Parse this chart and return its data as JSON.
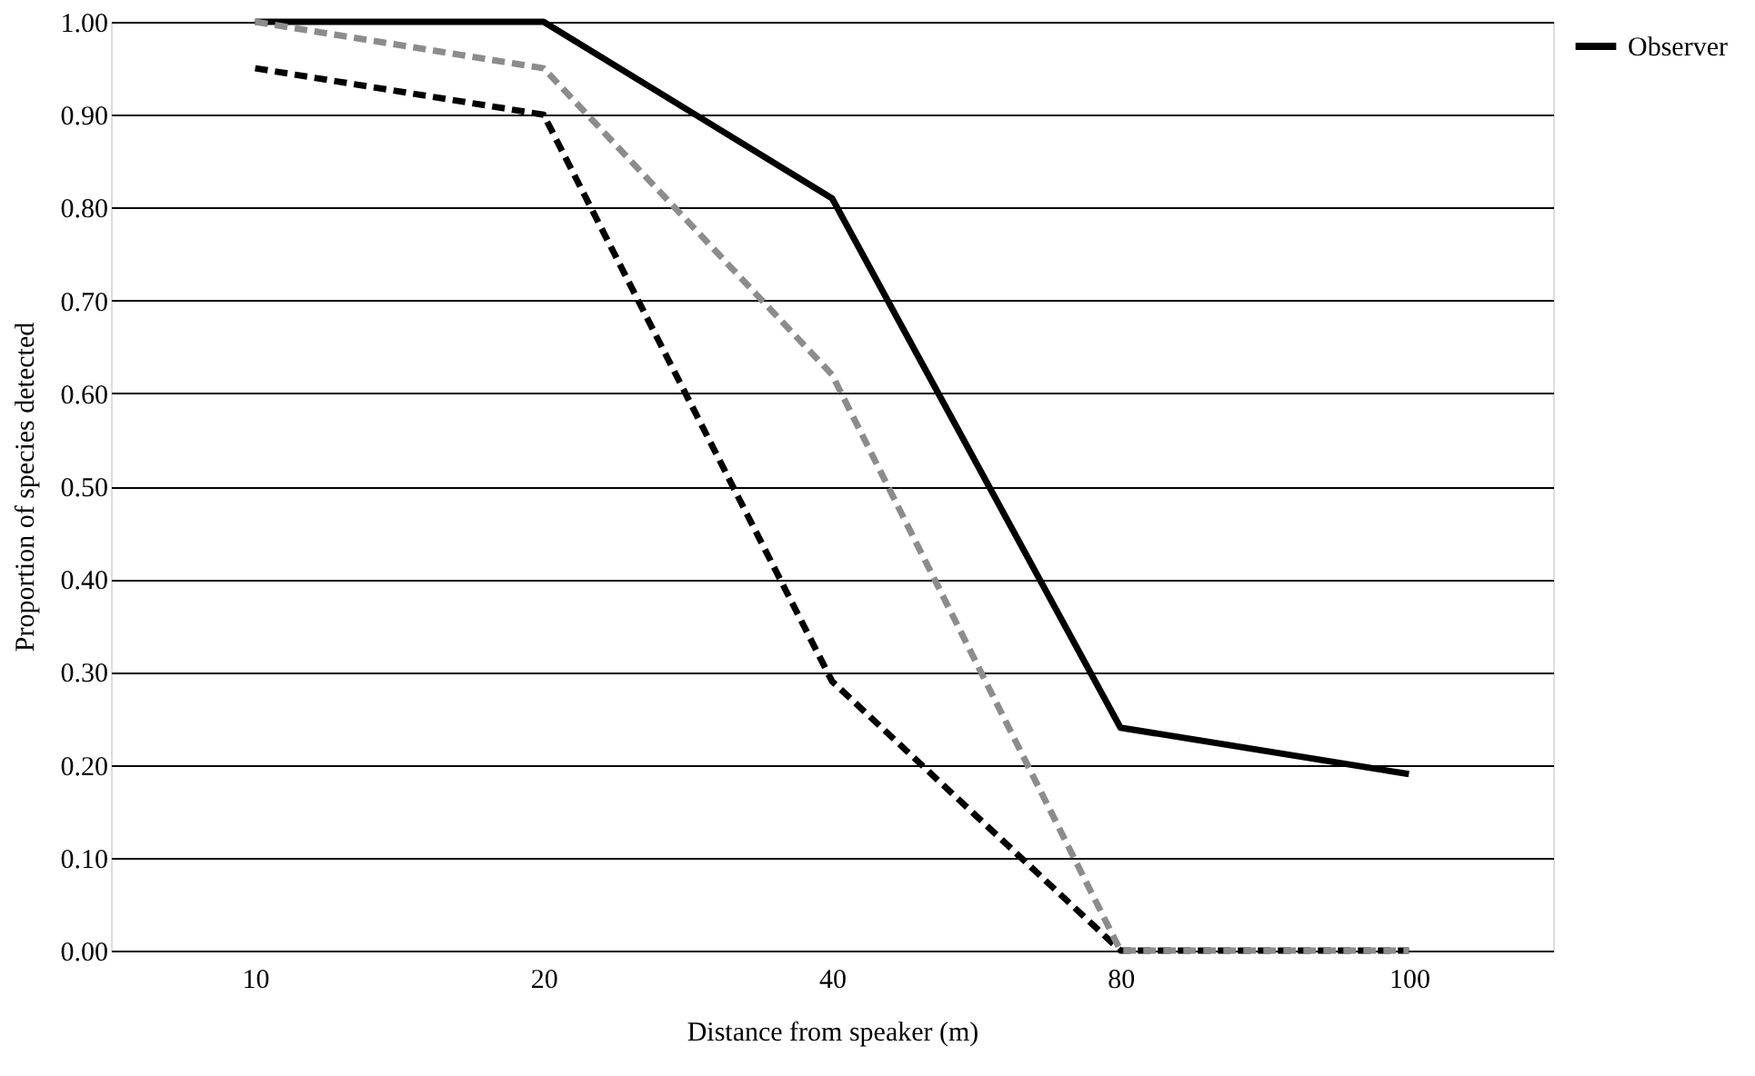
{
  "chart_data": {
    "type": "line",
    "xlabel": "Distance from speaker (m)",
    "ylabel": "Proportion of species detected",
    "categories": [
      "10",
      "20",
      "40",
      "80",
      "100"
    ],
    "series": [
      {
        "name": "Observer",
        "color": "#000000",
        "line_style": "solid",
        "values": [
          1.0,
          1.0,
          0.81,
          0.24,
          0.19
        ]
      },
      {
        "color": "#000000",
        "line_style": "dashed",
        "values": [
          0.95,
          0.9,
          0.29,
          0.0,
          0.0
        ]
      },
      {
        "color": "#8c8c8c",
        "line_style": "dashed",
        "values": [
          1.0,
          0.95,
          0.62,
          0.0,
          0.0
        ]
      }
    ],
    "ylim": [
      0,
      1
    ],
    "yticks": [
      {
        "value": 0,
        "label": "0.00"
      },
      {
        "value": 0.1,
        "label": "0.10"
      },
      {
        "value": 0.2,
        "label": "0.20"
      },
      {
        "value": 0.3,
        "label": "0.30"
      },
      {
        "value": 0.4,
        "label": "0.40"
      },
      {
        "value": 0.5,
        "label": "0.50"
      },
      {
        "value": 0.6,
        "label": "0.60"
      },
      {
        "value": 0.7,
        "label": "0.70"
      },
      {
        "value": 0.8,
        "label": "0.80"
      },
      {
        "value": 0.9,
        "label": "0.90"
      },
      {
        "value": 1.0,
        "label": "1.00"
      }
    ],
    "grid": "y",
    "legend": "right",
    "marker": "none"
  }
}
